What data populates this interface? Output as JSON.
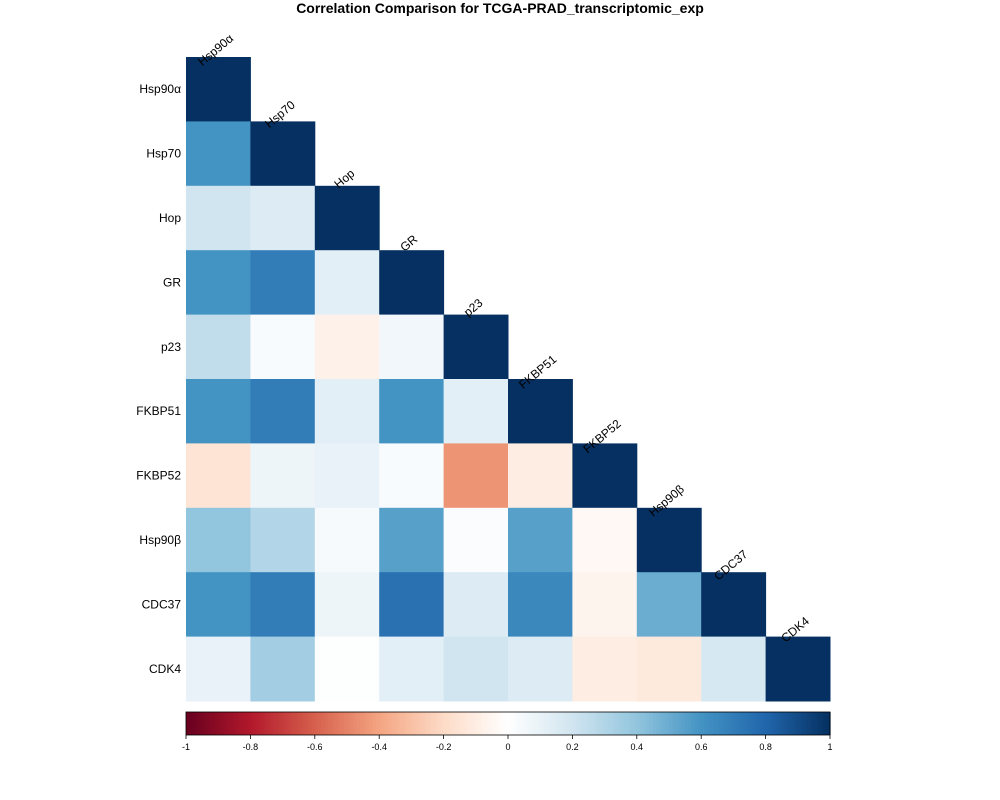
{
  "chart_data": {
    "type": "heatmap",
    "title": "Correlation Comparison for TCGA-PRAD_transcriptomic_exp",
    "shape": "lower-triangle",
    "labels": [
      "Hsp90α",
      "Hsp70",
      "Hop",
      "GR",
      "p23",
      "FKBP51",
      "FKBP52",
      "Hsp90β",
      "CDC37",
      "CDK4"
    ],
    "matrix": [
      [
        1.0,
        0.6,
        0.2,
        0.6,
        0.25,
        0.6,
        -0.15,
        0.4,
        0.6,
        0.1
      ],
      [
        0.6,
        1.0,
        0.15,
        0.7,
        0.03,
        0.7,
        0.08,
        0.3,
        0.7,
        0.35
      ],
      [
        0.2,
        0.15,
        1.0,
        0.12,
        -0.08,
        0.12,
        0.1,
        0.04,
        0.08,
        0.01
      ],
      [
        0.6,
        0.7,
        0.12,
        1.0,
        0.06,
        0.6,
        0.03,
        0.55,
        0.75,
        0.12
      ],
      [
        0.25,
        0.03,
        -0.08,
        0.06,
        1.0,
        0.12,
        -0.45,
        0.02,
        0.15,
        0.2
      ],
      [
        0.6,
        0.7,
        0.12,
        0.6,
        0.12,
        1.0,
        -0.1,
        0.55,
        0.65,
        0.15
      ],
      [
        -0.15,
        0.08,
        0.1,
        0.03,
        -0.45,
        -0.1,
        1.0,
        -0.04,
        -0.06,
        -0.1
      ],
      [
        0.4,
        0.3,
        0.04,
        0.55,
        0.02,
        0.55,
        -0.04,
        1.0,
        0.5,
        -0.12
      ],
      [
        0.6,
        0.7,
        0.08,
        0.75,
        0.15,
        0.65,
        -0.06,
        0.5,
        1.0,
        0.18
      ],
      [
        0.1,
        0.35,
        0.01,
        0.12,
        0.2,
        0.15,
        -0.1,
        -0.12,
        0.18,
        1.0
      ]
    ],
    "colorbar": {
      "range": [
        -1,
        1
      ],
      "ticks": [
        "-1",
        "-0.8",
        "-0.6",
        "-0.4",
        "-0.2",
        "0",
        "0.2",
        "0.4",
        "0.6",
        "0.8",
        "1"
      ],
      "colors": [
        "#67001f",
        "#b2182b",
        "#d6604d",
        "#f4a582",
        "#fddbc7",
        "#ffffff",
        "#d1e5f0",
        "#92c5de",
        "#4393c3",
        "#2166ac",
        "#053061"
      ]
    }
  }
}
